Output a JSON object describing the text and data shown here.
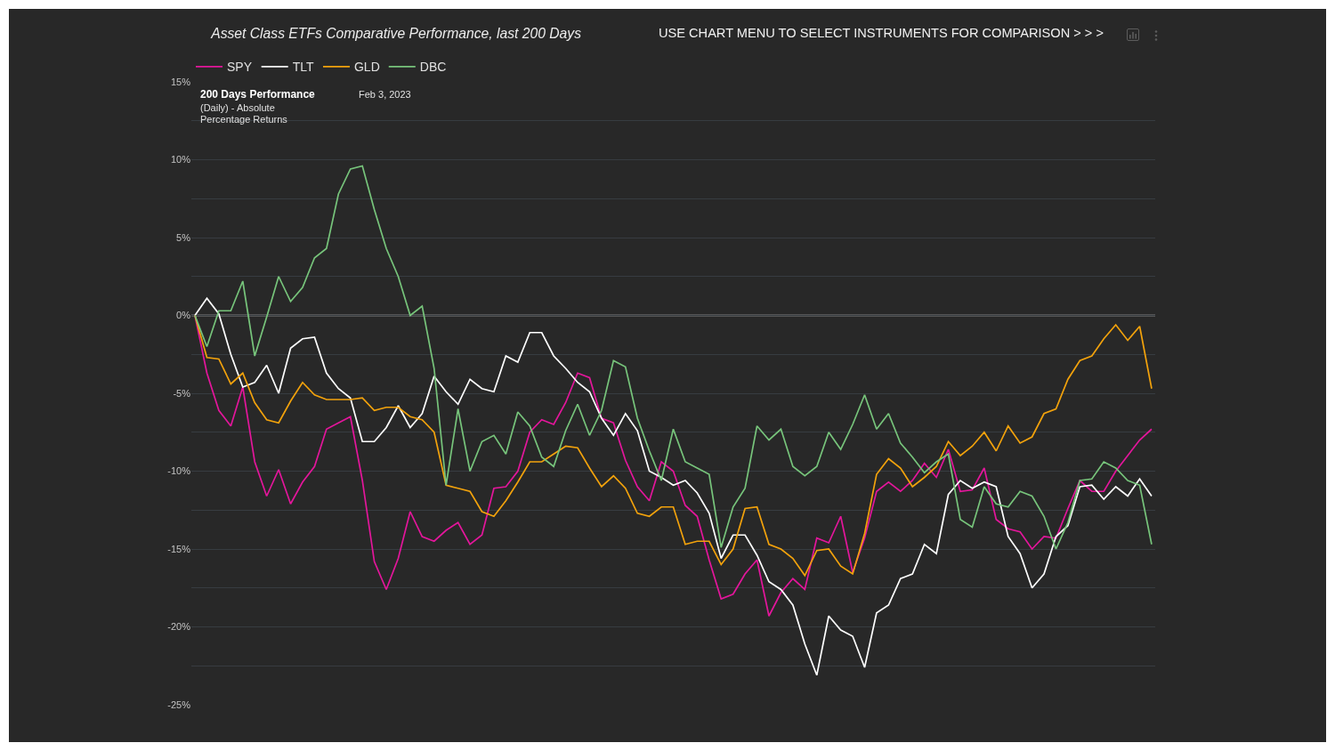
{
  "chart_data": {
    "type": "line",
    "title": "Asset Class ETFs Comparative Performance, last 200 Days",
    "annotations": [
      "USE CHART MENU TO SELECT INSTRUMENTS FOR COMPARISON > > >",
      "200 Days Performance",
      "Feb 3, 2023",
      "(Daily) - Absolute",
      "Percentage Returns"
    ],
    "categories": [
      null,
      null,
      null,
      null,
      null,
      null,
      null,
      null,
      null,
      null,
      null,
      null,
      null,
      null,
      null,
      null,
      null,
      null,
      null,
      null,
      null,
      null,
      null,
      null,
      null,
      null,
      null,
      null,
      null,
      null,
      null,
      null,
      null,
      null,
      null,
      null,
      null,
      null,
      null,
      null,
      null,
      null,
      null,
      null,
      null,
      null,
      null,
      null,
      null,
      null,
      null,
      null,
      null,
      null,
      null,
      null,
      null,
      null,
      null,
      null,
      null,
      null,
      null,
      null,
      null,
      null,
      null,
      null,
      null,
      null,
      null,
      null,
      null,
      null,
      null,
      null,
      null,
      null,
      null,
      null,
      null
    ],
    "series": [
      {
        "name": "SPY",
        "color": "#e3169b",
        "values": [
          0,
          -3.7,
          -6.1,
          -7.1,
          -4.6,
          -9.4,
          -11.6,
          -9.9,
          -12.1,
          -10.7,
          -9.7,
          -7.3,
          -6.9,
          -6.5,
          -10.6,
          -15.8,
          -17.6,
          -15.6,
          -12.6,
          -14.2,
          -14.5,
          -13.8,
          -13.3,
          -14.7,
          -14.1,
          -11.1,
          -11,
          -10,
          -7.5,
          -6.7,
          -7,
          -5.6,
          -3.7,
          -4,
          -6.6,
          -6.9,
          -9.3,
          -11,
          -11.9,
          -9.4,
          -10,
          -12.2,
          -12.9,
          -15.7,
          -18.2,
          -17.9,
          -16.6,
          -15.7,
          -19.3,
          -17.8,
          -16.9,
          -17.6,
          -14.3,
          -14.6,
          -12.9,
          -16.5,
          -14.3,
          -11.3,
          -10.7,
          -11.3,
          -10.6,
          -9.5,
          -10.4,
          -8.6,
          -11.3,
          -11.2,
          -9.8,
          -13.1,
          -13.7,
          -13.9,
          -15,
          -14.2,
          -14.3,
          -12.4,
          -10.6,
          -11.3,
          -11.3,
          -10,
          -9,
          -8,
          -7.3
        ]
      },
      {
        "name": "TLT",
        "color": "#ffffff",
        "values": [
          0,
          1.1,
          0.1,
          -2.5,
          -4.6,
          -4.3,
          -3.2,
          -5,
          -2.1,
          -1.5,
          -1.4,
          -3.7,
          -4.7,
          -5.3,
          -8.1,
          -8.1,
          -7.2,
          -5.8,
          -7.2,
          -6.3,
          -3.9,
          -4.9,
          -5.7,
          -4.1,
          -4.7,
          -4.9,
          -2.6,
          -3,
          -1.1,
          -1.1,
          -2.6,
          -3.4,
          -4.3,
          -4.9,
          -6.6,
          -7.7,
          -6.3,
          -7.4,
          -10,
          -10.4,
          -10.9,
          -10.6,
          -11.4,
          -12.7,
          -15.6,
          -14.1,
          -14.1,
          -15.4,
          -17.1,
          -17.6,
          -18.6,
          -21.1,
          -23.1,
          -19.3,
          -20.2,
          -20.6,
          -22.6,
          -19.1,
          -18.6,
          -16.9,
          -16.6,
          -14.7,
          -15.3,
          -11.5,
          -10.6,
          -11.1,
          -10.7,
          -11,
          -14.2,
          -15.3,
          -17.5,
          -16.6,
          -14.2,
          -13.5,
          -11,
          -10.9,
          -11.8,
          -11,
          -11.6,
          -10.5,
          -11.6
        ]
      },
      {
        "name": "GLD",
        "color": "#f2a20c",
        "values": [
          0,
          -2.7,
          -2.8,
          -4.4,
          -3.7,
          -5.6,
          -6.7,
          -6.9,
          -5.5,
          -4.3,
          -5.1,
          -5.4,
          -5.4,
          -5.4,
          -5.3,
          -6.1,
          -5.9,
          -5.9,
          -6.5,
          -6.7,
          -7.5,
          -10.9,
          -11.1,
          -11.3,
          -12.6,
          -12.9,
          -11.9,
          -10.7,
          -9.4,
          -9.4,
          -8.9,
          -8.4,
          -8.5,
          -9.8,
          -11,
          -10.3,
          -11.1,
          -12.7,
          -12.9,
          -12.3,
          -12.3,
          -14.7,
          -14.5,
          -14.5,
          -16,
          -15,
          -12.4,
          -12.3,
          -14.7,
          -15,
          -15.6,
          -16.7,
          -15.1,
          -15,
          -16.1,
          -16.6,
          -14,
          -10.2,
          -9.2,
          -9.8,
          -11,
          -10.4,
          -9.7,
          -8.1,
          -9,
          -8.4,
          -7.5,
          -8.7,
          -7.1,
          -8.2,
          -7.8,
          -6.3,
          -6,
          -4.1,
          -2.9,
          -2.6,
          -1.5,
          -0.6,
          -1.6,
          -0.7,
          -4.7
        ]
      },
      {
        "name": "DBC",
        "color": "#77c47b",
        "values": [
          0,
          -2,
          0.3,
          0.3,
          2.2,
          -2.6,
          -0.1,
          2.5,
          0.9,
          1.8,
          3.7,
          4.3,
          7.8,
          9.4,
          9.6,
          6.8,
          4.3,
          2.5,
          0,
          0.6,
          -3.4,
          -10.9,
          -6,
          -10,
          -8.1,
          -7.7,
          -8.9,
          -6.2,
          -7.1,
          -9.1,
          -9.7,
          -7.4,
          -5.7,
          -7.7,
          -6.1,
          -2.9,
          -3.3,
          -6.6,
          -8.7,
          -10.6,
          -7.3,
          -9.4,
          -9.8,
          -10.2,
          -14.9,
          -12.3,
          -11.1,
          -7.1,
          -8,
          -7.3,
          -9.7,
          -10.3,
          -9.7,
          -7.5,
          -8.6,
          -7,
          -5.1,
          -7.3,
          -6.3,
          -8.2,
          -9.1,
          -10.1,
          -9.4,
          -8.9,
          -13.1,
          -13.6,
          -11,
          -12.1,
          -12.3,
          -11.3,
          -11.6,
          -12.9,
          -15,
          -13.3,
          -10.6,
          -10.5,
          -9.4,
          -9.8,
          -10.6,
          -10.9,
          -14.7
        ]
      }
    ],
    "ylim": [
      -25,
      15
    ],
    "yticks": [
      {
        "value": 15,
        "label": "15%"
      },
      {
        "value": 12.5,
        "label": null
      },
      {
        "value": 10,
        "label": "10%"
      },
      {
        "value": 7.5,
        "label": null
      },
      {
        "value": 5,
        "label": "5%"
      },
      {
        "value": 2.5,
        "label": null
      },
      {
        "value": 0,
        "label": "0%"
      },
      {
        "value": -2.5,
        "label": null
      },
      {
        "value": -5,
        "label": "-5%"
      },
      {
        "value": -7.5,
        "label": null
      },
      {
        "value": -10,
        "label": "-10%"
      },
      {
        "value": -12.5,
        "label": null
      },
      {
        "value": -15,
        "label": "-15%"
      },
      {
        "value": -17.5,
        "label": null
      },
      {
        "value": -20,
        "label": "-20%"
      },
      {
        "value": -22.5,
        "label": null
      },
      {
        "value": -25,
        "label": "-25%"
      }
    ],
    "grid": "y",
    "legend": "top left",
    "line_style": "solid",
    "ref_lines": [
      {
        "axis": "y",
        "value": 0,
        "color": "#d9d9d9"
      }
    ]
  }
}
